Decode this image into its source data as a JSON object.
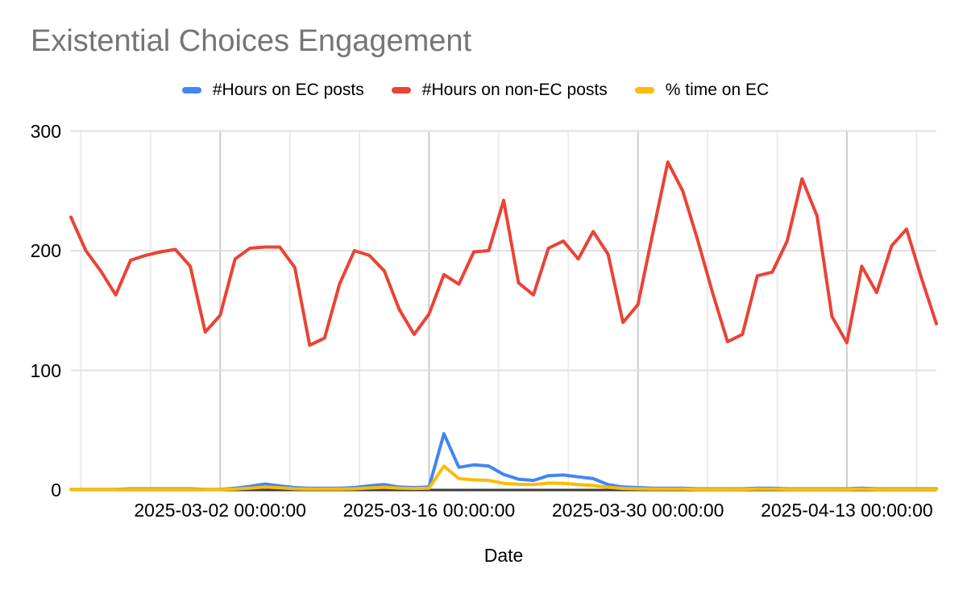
{
  "title": "Existential Choices Engagement",
  "legend": {
    "items": [
      {
        "label": "#Hours on EC posts",
        "color": "#4285F4"
      },
      {
        "label": "#Hours on non-EC posts",
        "color": "#EA4335"
      },
      {
        "label": "% time on EC",
        "color": "#FBBC04"
      }
    ]
  },
  "axes": {
    "x_title": "Date",
    "y_ticks": [
      "0",
      "100",
      "200",
      "300"
    ],
    "x_ticks": [
      "2025-03-02 00:00:00",
      "2025-03-16 00:00:00",
      "2025-03-30 00:00:00",
      "2025-04-13 00:00:00"
    ]
  },
  "colors": {
    "background": "#ffffff",
    "title_text": "#757575",
    "axis_text": "#000000",
    "baseline": "#3b3b3b",
    "gridline_h": "#e0e0e0",
    "gridline_minor": "#ebebeb",
    "gridline_major": "#cccccc",
    "series_ec_hours": "#4285F4",
    "series_non_ec_hours": "#EA4335",
    "series_pct_ec": "#FBBC04"
  },
  "chart_data": {
    "type": "line",
    "title": "Existential Choices Engagement",
    "xlabel": "Date",
    "ylabel": "",
    "ylim": [
      0,
      300
    ],
    "yticks": [
      0,
      100,
      200,
      300
    ],
    "grid": true,
    "legend_position": "top",
    "x_major_tick_indices": [
      10,
      24,
      38,
      52
    ],
    "x_tick_labels": [
      "2025-03-02 00:00:00",
      "2025-03-16 00:00:00",
      "2025-03-30 00:00:00",
      "2025-04-13 00:00:00"
    ],
    "x": [
      "2025-02-20",
      "2025-02-21",
      "2025-02-22",
      "2025-02-23",
      "2025-02-24",
      "2025-02-25",
      "2025-02-26",
      "2025-02-27",
      "2025-02-28",
      "2025-03-01",
      "2025-03-02",
      "2025-03-03",
      "2025-03-04",
      "2025-03-05",
      "2025-03-06",
      "2025-03-07",
      "2025-03-08",
      "2025-03-09",
      "2025-03-10",
      "2025-03-11",
      "2025-03-12",
      "2025-03-13",
      "2025-03-14",
      "2025-03-15",
      "2025-03-16",
      "2025-03-17",
      "2025-03-18",
      "2025-03-19",
      "2025-03-20",
      "2025-03-21",
      "2025-03-22",
      "2025-03-23",
      "2025-03-24",
      "2025-03-25",
      "2025-03-26",
      "2025-03-27",
      "2025-03-28",
      "2025-03-29",
      "2025-03-30",
      "2025-03-31",
      "2025-04-01",
      "2025-04-02",
      "2025-04-03",
      "2025-04-04",
      "2025-04-05",
      "2025-04-06",
      "2025-04-07",
      "2025-04-08",
      "2025-04-09",
      "2025-04-10",
      "2025-04-11",
      "2025-04-12",
      "2025-04-13",
      "2025-04-14",
      "2025-04-15",
      "2025-04-16",
      "2025-04-17",
      "2025-04-18",
      "2025-04-19"
    ],
    "series": [
      {
        "name": "#Hours on EC posts",
        "color": "#4285F4",
        "values": [
          0.5,
          0.5,
          0.5,
          0.5,
          1,
          1,
          1,
          1,
          1,
          0.5,
          0.5,
          1.5,
          3,
          5,
          3.5,
          2,
          1.5,
          1.5,
          1.5,
          2,
          3.5,
          4.5,
          2.5,
          2,
          2.5,
          47,
          19,
          21,
          20,
          13,
          9,
          8,
          12,
          12.5,
          11,
          9.5,
          4.5,
          2.5,
          2,
          1.5,
          1.5,
          1.5,
          1,
          1,
          1,
          1,
          1.5,
          1.5,
          1,
          1,
          1,
          1,
          1,
          1.5,
          1,
          1,
          1,
          1,
          1
        ]
      },
      {
        "name": "#Hours on non-EC posts",
        "color": "#EA4335",
        "values": [
          228,
          200,
          183,
          163,
          192,
          196,
          199,
          201,
          187,
          132,
          146,
          193,
          202,
          203,
          203,
          186,
          121,
          127,
          172,
          200,
          196,
          183,
          151,
          130,
          147,
          180,
          172,
          199,
          200,
          242,
          173,
          163,
          202,
          208,
          193,
          216,
          197,
          140,
          155,
          215,
          274,
          250,
          209,
          165,
          124,
          130,
          179,
          182,
          208,
          260,
          229,
          145,
          123,
          187,
          165,
          204,
          218,
          177,
          139
        ]
      },
      {
        "name": "% time on EC",
        "color": "#FBBC04",
        "values": [
          0.4,
          0.4,
          0.4,
          0.4,
          0.5,
          0.5,
          0.5,
          0.5,
          0.5,
          0.4,
          0.4,
          0.8,
          1.5,
          2.5,
          1.8,
          1,
          0.8,
          0.8,
          0.8,
          1,
          1.7,
          2.3,
          1.5,
          1.3,
          1.5,
          20,
          9.5,
          8.5,
          8,
          5.5,
          4.8,
          4.5,
          5.8,
          5.5,
          4.5,
          3.8,
          2.3,
          1.3,
          1,
          0.8,
          0.8,
          0.8,
          0.6,
          0.6,
          0.6,
          0.6,
          0.8,
          0.8,
          0.6,
          0.6,
          0.6,
          0.6,
          0.6,
          0.8,
          0.6,
          0.6,
          0.6,
          0.6,
          0.6
        ]
      }
    ]
  }
}
